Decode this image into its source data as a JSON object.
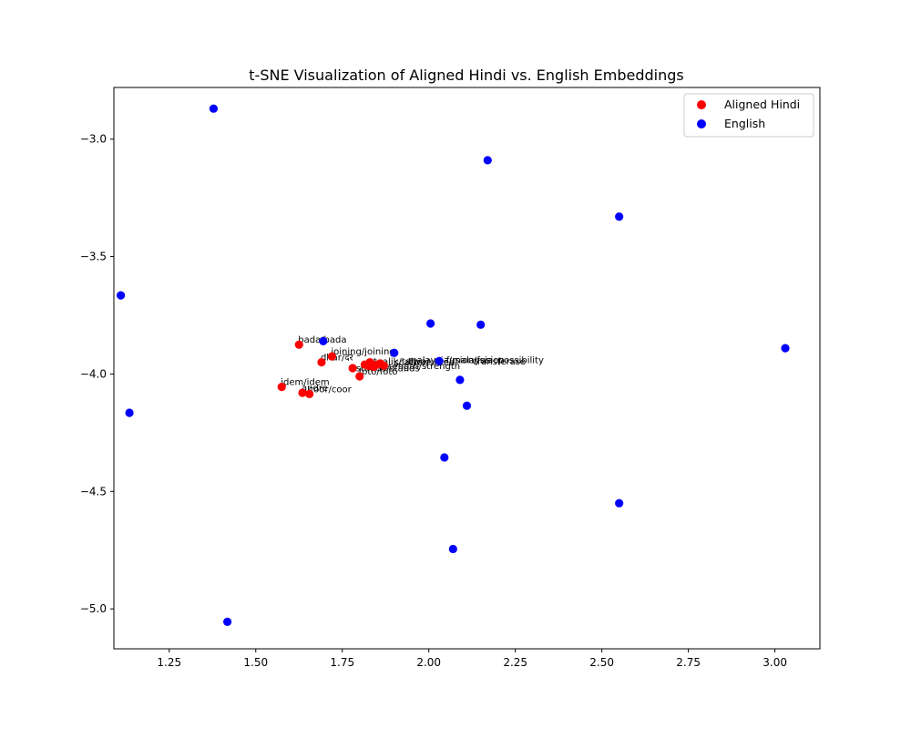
{
  "chart_data": {
    "type": "scatter",
    "title": "t-SNE Visualization of Aligned Hindi vs. English Embeddings",
    "xlabel": "",
    "ylabel": "",
    "xlim": [
      1.09,
      3.13
    ],
    "ylim": [
      -5.17,
      -2.78
    ],
    "xticks": [
      1.25,
      1.5,
      1.75,
      2.0,
      2.25,
      2.5,
      2.75,
      3.0
    ],
    "xtick_labels": [
      "1.25",
      "1.50",
      "1.75",
      "2.00",
      "2.25",
      "2.50",
      "2.75",
      "3.00"
    ],
    "yticks": [
      -3.0,
      -3.5,
      -4.0,
      -4.5,
      -5.0
    ],
    "ytick_labels": [
      "−3.0",
      "−3.5",
      "−4.0",
      "−4.5",
      "−5.0"
    ],
    "grid": false,
    "legend_position": "top-right",
    "series": [
      {
        "name": "Aligned Hindi",
        "color": "#ff0000",
        "points": [
          {
            "x": 1.625,
            "y": -3.875,
            "label": "bada/bada"
          },
          {
            "x": 1.72,
            "y": -3.925,
            "label": "joining/joining"
          },
          {
            "x": 1.69,
            "y": -3.95,
            "label": "dhar/दर"
          },
          {
            "x": 1.78,
            "y": -3.975,
            "label": ""
          },
          {
            "x": 1.8,
            "y": -4.01,
            "label": "foto/foto"
          },
          {
            "x": 1.815,
            "y": -3.96,
            "label": ""
          },
          {
            "x": 1.825,
            "y": -3.965,
            "label": ""
          },
          {
            "x": 1.83,
            "y": -3.95,
            "label": ""
          },
          {
            "x": 1.84,
            "y": -3.97,
            "label": ""
          },
          {
            "x": 1.85,
            "y": -3.96,
            "label": ""
          },
          {
            "x": 1.86,
            "y": -3.955,
            "label": ""
          },
          {
            "x": 1.87,
            "y": -3.965,
            "label": ""
          },
          {
            "x": 1.575,
            "y": -4.055,
            "label": "idem/idem"
          },
          {
            "x": 1.635,
            "y": -4.08,
            "label": "andre"
          },
          {
            "x": 1.655,
            "y": -4.085,
            "label": "coor/coor"
          }
        ]
      },
      {
        "name": "English",
        "color": "#0000ff",
        "points": [
          {
            "x": 1.378,
            "y": -2.87
          },
          {
            "x": 2.17,
            "y": -3.09
          },
          {
            "x": 2.55,
            "y": -3.33
          },
          {
            "x": 1.11,
            "y": -3.665
          },
          {
            "x": 2.005,
            "y": -3.785
          },
          {
            "x": 2.15,
            "y": -3.79
          },
          {
            "x": 1.695,
            "y": -3.86
          },
          {
            "x": 3.03,
            "y": -3.89
          },
          {
            "x": 1.9,
            "y": -3.91
          },
          {
            "x": 2.03,
            "y": -3.945
          },
          {
            "x": 2.09,
            "y": -4.025
          },
          {
            "x": 2.11,
            "y": -4.135
          },
          {
            "x": 1.135,
            "y": -4.165
          },
          {
            "x": 2.045,
            "y": -4.355
          },
          {
            "x": 2.55,
            "y": -4.55
          },
          {
            "x": 2.07,
            "y": -4.745
          },
          {
            "x": 1.418,
            "y": -5.055
          }
        ]
      }
    ],
    "cluster_annotations": [
      {
        "x": 1.84,
        "y": -3.955,
        "text": "taalik/talwar"
      },
      {
        "x": 1.9,
        "y": -3.96,
        "text": "scatter/sitrea"
      },
      {
        "x": 1.94,
        "y": -3.95,
        "text": "malaysia/malaysia"
      },
      {
        "x": 2.05,
        "y": -3.95,
        "text": "fusion/fusion"
      },
      {
        "x": 2.13,
        "y": -3.955,
        "text": "transferase"
      },
      {
        "x": 2.2,
        "y": -3.95,
        "text": "possibility"
      },
      {
        "x": 1.79,
        "y": -3.985,
        "text": "stands/stands"
      },
      {
        "x": 1.86,
        "y": -3.975,
        "text": "strength/strength"
      }
    ]
  }
}
